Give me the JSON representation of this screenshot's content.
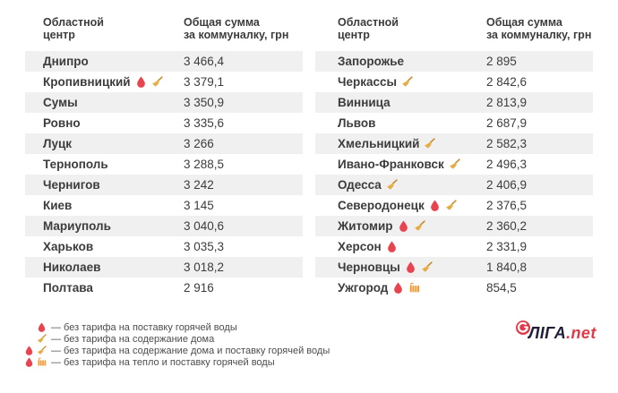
{
  "colors": {
    "text": "#3c3c3c",
    "row_alt_bg": "#f0f0f0",
    "droplet": "#e8434f",
    "broom_head": "#ecb54c",
    "broom_handle": "#c98f2f",
    "broom_lines": "#d99b37",
    "radiator": "#f39b38",
    "logo_navy": "#1e1e38",
    "logo_red": "#e13b4a"
  },
  "header": {
    "city_line1": "Областной",
    "city_line2": "центр",
    "sum_line1": "Общая сумма",
    "sum_line2": "за коммуналку, грн"
  },
  "tables": [
    {
      "side": "left",
      "rows": [
        {
          "city": "Днипро",
          "icons": [],
          "value": "3 466,4"
        },
        {
          "city": "Кропивницкий",
          "icons": [
            "droplet",
            "broom"
          ],
          "value": "3 379,1"
        },
        {
          "city": "Сумы",
          "icons": [],
          "value": "3 350,9"
        },
        {
          "city": "Ровно",
          "icons": [],
          "value": "3 335,6"
        },
        {
          "city": "Луцк",
          "icons": [],
          "value": "3 266"
        },
        {
          "city": "Тернополь",
          "icons": [],
          "value": "3 288,5"
        },
        {
          "city": "Чернигов",
          "icons": [],
          "value": "3 242"
        },
        {
          "city": "Киев",
          "icons": [],
          "value": "3 145"
        },
        {
          "city": "Мариуполь",
          "icons": [],
          "value": "3 040,6"
        },
        {
          "city": "Харьков",
          "icons": [],
          "value": "3 035,3"
        },
        {
          "city": "Николаев",
          "icons": [],
          "value": "3 018,2"
        },
        {
          "city": "Полтава",
          "icons": [],
          "value": "2 916"
        }
      ]
    },
    {
      "side": "right",
      "rows": [
        {
          "city": "Запорожье",
          "icons": [],
          "value": "2 895"
        },
        {
          "city": "Черкассы",
          "icons": [
            "broom"
          ],
          "value": "2 842,6"
        },
        {
          "city": "Винница",
          "icons": [],
          "value": "2 813,9"
        },
        {
          "city": "Львов",
          "icons": [],
          "value": "2 687,9"
        },
        {
          "city": "Хмельницкий",
          "icons": [
            "broom"
          ],
          "value": "2 582,3"
        },
        {
          "city": "Ивано-Франковск",
          "icons": [
            "broom"
          ],
          "value": "2 496,3"
        },
        {
          "city": "Одесса",
          "icons": [
            "broom"
          ],
          "value": "2 406,9"
        },
        {
          "city": "Северодонецк",
          "icons": [
            "droplet",
            "broom"
          ],
          "value": "2 376,5"
        },
        {
          "city": "Житомир",
          "icons": [
            "droplet",
            "broom"
          ],
          "value": "2 360,2"
        },
        {
          "city": "Херсон",
          "icons": [
            "droplet"
          ],
          "value": "2 331,9"
        },
        {
          "city": "Черновцы",
          "icons": [
            "droplet",
            "broom"
          ],
          "value": "1 840,8"
        },
        {
          "city": "Ужгород",
          "icons": [
            "droplet",
            "radiator"
          ],
          "value": "854,5"
        }
      ]
    }
  ],
  "legend": [
    {
      "icons": [
        "droplet"
      ],
      "text": "— без тарифа на поставку горячей воды"
    },
    {
      "icons": [
        "broom"
      ],
      "text": "— без тарифа на содержание дома"
    },
    {
      "icons": [
        "droplet",
        "broom"
      ],
      "text": "— без тарифа на содержание дома и поставку горячей воды"
    },
    {
      "icons": [
        "droplet",
        "radiator"
      ],
      "text": "— без тарифа на тепло и поставку горячей воды"
    }
  ],
  "logo": {
    "brand": "ЛІГА",
    "tld": ".net"
  },
  "chart_data": {
    "type": "table",
    "title": "",
    "columns": [
      "Областной центр",
      "Общая сумма за коммуналку, грн"
    ],
    "rows": [
      [
        "Днипро",
        3466.4
      ],
      [
        "Кропивницкий",
        3379.1
      ],
      [
        "Сумы",
        3350.9
      ],
      [
        "Ровно",
        3335.6
      ],
      [
        "Луцк",
        3266
      ],
      [
        "Тернополь",
        3288.5
      ],
      [
        "Чернигов",
        3242
      ],
      [
        "Киев",
        3145
      ],
      [
        "Мариуполь",
        3040.6
      ],
      [
        "Харьков",
        3035.3
      ],
      [
        "Николаев",
        3018.2
      ],
      [
        "Полтава",
        2916
      ],
      [
        "Запорожье",
        2895
      ],
      [
        "Черкассы",
        2842.6
      ],
      [
        "Винница",
        2813.9
      ],
      [
        "Львов",
        2687.9
      ],
      [
        "Хмельницкий",
        2582.3
      ],
      [
        "Ивано-Франковск",
        2496.3
      ],
      [
        "Одесса",
        2406.9
      ],
      [
        "Северодонецк",
        2376.5
      ],
      [
        "Житомир",
        2360.2
      ],
      [
        "Херсон",
        2331.9
      ],
      [
        "Черновцы",
        1840.8
      ],
      [
        "Ужгород",
        854.5
      ]
    ],
    "markers": {
      "droplet": "без тарифа на поставку горячей воды",
      "broom": "без тарифа на содержание дома",
      "droplet+broom": "без тарифа на содержание дома и поставку горячей воды",
      "droplet+radiator": "без тарифа на тепло и поставку горячей воды"
    },
    "city_markers": {
      "Кропивницкий": [
        "droplet",
        "broom"
      ],
      "Черкассы": [
        "broom"
      ],
      "Хмельницкий": [
        "broom"
      ],
      "Ивано-Франковск": [
        "broom"
      ],
      "Одесса": [
        "broom"
      ],
      "Северодонецк": [
        "droplet",
        "broom"
      ],
      "Житомир": [
        "droplet",
        "broom"
      ],
      "Херсон": [
        "droplet"
      ],
      "Черновцы": [
        "droplet",
        "broom"
      ],
      "Ужгород": [
        "droplet",
        "radiator"
      ]
    }
  }
}
